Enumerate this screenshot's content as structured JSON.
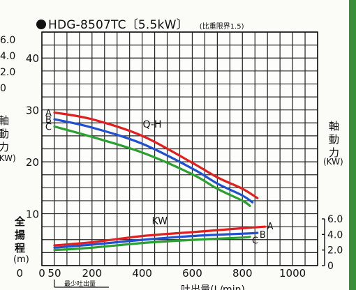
{
  "header": {
    "title": "HDG-8507TC〔5.5kW〕",
    "subtitle": "(比重限界1.5)"
  },
  "left_axis": {
    "head_label_chars": [
      "全",
      "揚",
      "程"
    ],
    "head_unit": "(m)",
    "power_label_chars": [
      "軸",
      "動",
      "力"
    ],
    "power_unit": "(KW)",
    "power_ticks_cut": [
      "6.0",
      "4.0",
      "2.0",
      "0"
    ]
  },
  "right_axis": {
    "power_label_chars": [
      "軸",
      "動",
      "力"
    ],
    "power_unit": "(KW)"
  },
  "x_axis": {
    "label_partial": "吐出量(L/min)",
    "min_flow_note": "最少吐出量",
    "min_flow_value": 50
  },
  "chart_data": {
    "type": "line",
    "title": "HDG-8507TC〔5.5kW〕",
    "subtitle": "(比重限界1.5)",
    "xlabel": "吐出量(L/min)",
    "ylabel": "全揚程(m)",
    "y2label": "軸動力(KW)",
    "xlim": [
      0,
      1100
    ],
    "xticks": [
      0,
      50,
      200,
      400,
      600,
      800,
      1000
    ],
    "ylim": [
      0,
      45
    ],
    "yticks": [
      10,
      20,
      30,
      40
    ],
    "y2ticks": [
      0,
      2.0,
      4.0,
      6.0
    ],
    "y2ticks_labels": [
      "0",
      "2.0",
      "4.0",
      "6.0"
    ],
    "y2_mapping": {
      "kw_at_y_36": 0,
      "kw_at_y_45": 6.0
    },
    "grid": true,
    "curve_labels": {
      "head": "Q-H",
      "power": "KW"
    },
    "head_series": [
      {
        "name": "A",
        "color": "#e02020",
        "x": [
          50,
          200,
          400,
          600,
          700,
          800,
          860
        ],
        "y": [
          29.5,
          28.2,
          25.0,
          19.8,
          17.0,
          14.8,
          13.0
        ]
      },
      {
        "name": "B",
        "color": "#2050d0",
        "x": [
          50,
          200,
          400,
          600,
          700,
          800,
          840
        ],
        "y": [
          28.2,
          26.6,
          23.5,
          18.7,
          15.8,
          13.5,
          12.2
        ]
      },
      {
        "name": "C",
        "color": "#2aa030",
        "x": [
          50,
          200,
          400,
          600,
          700,
          800,
          830
        ],
        "y": [
          26.8,
          24.8,
          21.8,
          17.6,
          14.8,
          12.5,
          11.5
        ]
      }
    ],
    "power_series": [
      {
        "name": "A",
        "color": "#e02020",
        "x": [
          50,
          200,
          400,
          600,
          800,
          890
        ],
        "y": [
          2.6,
          3.0,
          3.8,
          4.3,
          4.8,
          5.0
        ]
      },
      {
        "name": "B",
        "color": "#2050d0",
        "x": [
          50,
          200,
          400,
          600,
          800,
          860
        ],
        "y": [
          2.3,
          2.7,
          3.3,
          3.8,
          4.1,
          4.2
        ]
      },
      {
        "name": "C",
        "color": "#2aa030",
        "x": [
          50,
          200,
          400,
          600,
          800,
          830
        ],
        "y": [
          2.0,
          2.3,
          2.9,
          3.3,
          3.6,
          3.7
        ]
      }
    ]
  }
}
